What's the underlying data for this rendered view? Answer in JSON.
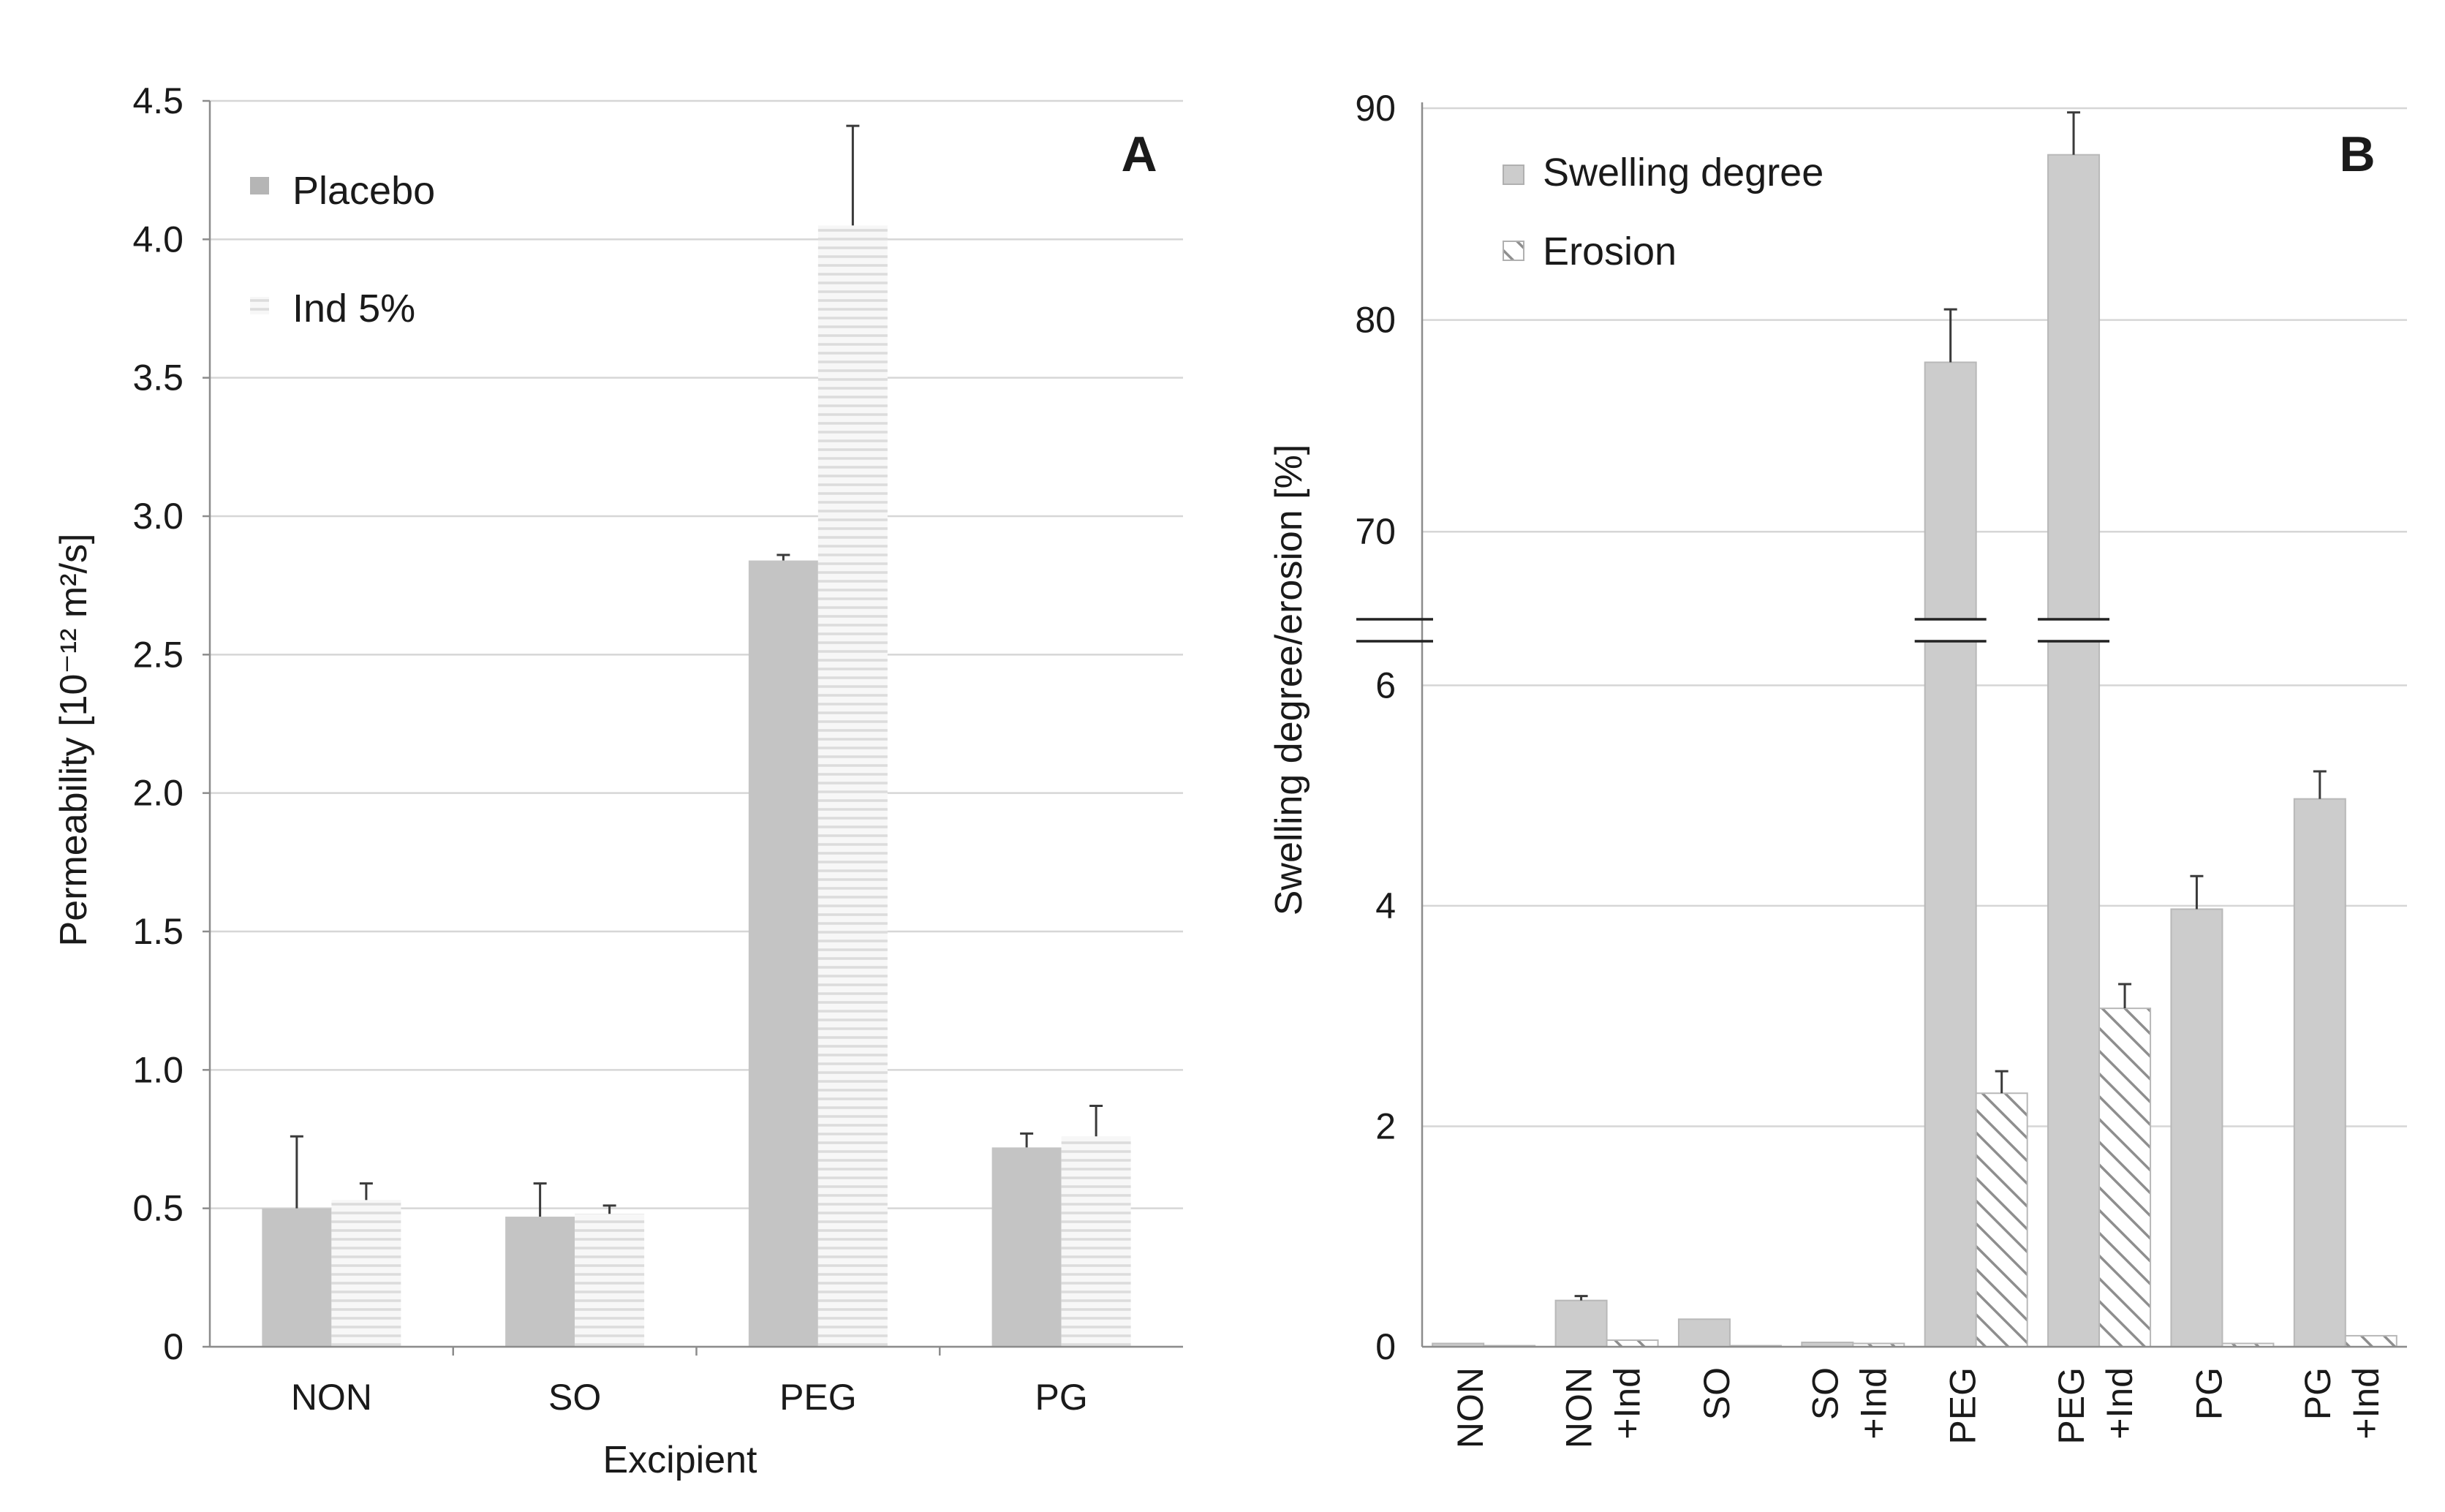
{
  "chart_data": [
    {
      "type": "bar",
      "panel": "A",
      "categories": [
        "NON",
        "SO",
        "PEG",
        "PG"
      ],
      "xlabel": "Excipient",
      "ylabel": "Permeability  [10⁻¹² m²/s]",
      "ylim": [
        0,
        4.5
      ],
      "yticks": [
        "0",
        "0.5",
        "1.0",
        "1.5",
        "2.0",
        "2.5",
        "3.0",
        "3.5",
        "4.0",
        "4.5"
      ],
      "ytick_values": [
        0,
        0.5,
        1.0,
        1.5,
        2.0,
        2.5,
        3.0,
        3.5,
        4.0,
        4.5
      ],
      "grid": true,
      "legend_position": "top-left",
      "series": [
        {
          "name": "Placebo",
          "values": [
            0.5,
            0.47,
            2.84,
            0.72
          ],
          "errors": [
            0.26,
            0.12,
            0.02,
            0.05
          ],
          "color": "#c4c4c4",
          "pattern": "solid"
        },
        {
          "name": "Ind 5%",
          "values": [
            0.53,
            0.48,
            4.05,
            0.76
          ],
          "errors": [
            0.06,
            0.03,
            0.36,
            0.11
          ],
          "color": "#eeeeee",
          "pattern": "horizontal-lines"
        }
      ]
    },
    {
      "type": "bar",
      "panel": "B",
      "categories": [
        [
          "NON"
        ],
        [
          "NON",
          "+Ind"
        ],
        [
          "SO"
        ],
        [
          "SO",
          "+Ind"
        ],
        [
          "PEG"
        ],
        [
          "PEG",
          "+Ind"
        ],
        [
          "PG"
        ],
        [
          "PG",
          "+Ind"
        ]
      ],
      "xlabel": "",
      "ylabel": "Swelling degree/erosion  [%]",
      "y_axis_break": true,
      "ylim_lower": [
        0,
        6.5
      ],
      "ylim_upper": [
        65,
        90
      ],
      "yticks_lower": [
        "0",
        "2",
        "4",
        "6"
      ],
      "ytick_values_lower": [
        0,
        2,
        4,
        6
      ],
      "yticks_upper": [
        "70",
        "80",
        "90"
      ],
      "ytick_values_upper": [
        70,
        80,
        90
      ],
      "grid": true,
      "legend_position": "top-left",
      "series": [
        {
          "name": "Swelling degree",
          "values": [
            0.03,
            0.42,
            0.25,
            0.04,
            78,
            87.8,
            3.97,
            4.97
          ],
          "errors": [
            0,
            0.04,
            0,
            0,
            2.5,
            2.0,
            0.3,
            0.25
          ],
          "color": "#cccccc",
          "pattern": "solid"
        },
        {
          "name": "Erosion",
          "values": [
            0.01,
            0.06,
            0.01,
            0.03,
            2.3,
            3.07,
            0.03,
            0.1
          ],
          "errors": [
            0,
            0,
            0,
            0,
            0.2,
            0.22,
            0,
            0
          ],
          "color": "#ffffff",
          "pattern": "diagonal-hatch"
        }
      ]
    }
  ],
  "panel_labels": {
    "a": "A",
    "b": "B"
  },
  "legend": {
    "a": [
      "Placebo",
      "Ind 5%"
    ],
    "b": [
      "Swelling degree",
      "Erosion"
    ]
  }
}
